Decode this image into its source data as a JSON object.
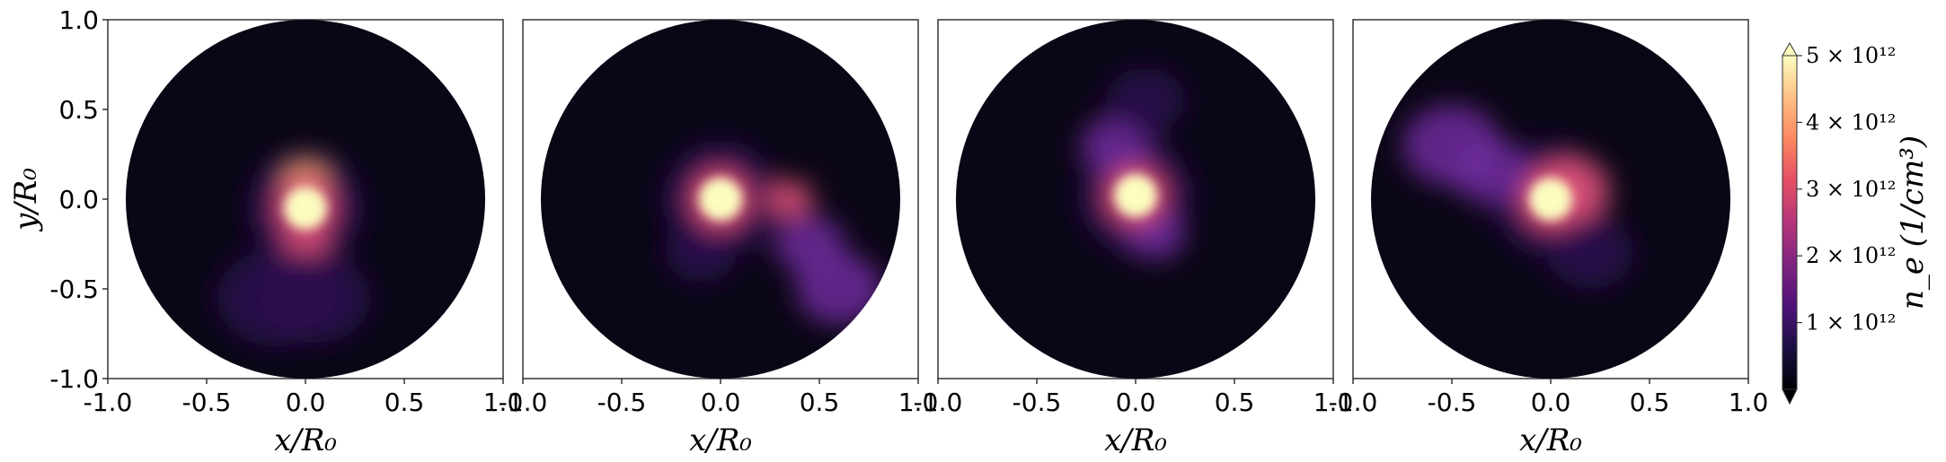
{
  "chart_data": {
    "type": "heatmap",
    "description_panels": 4,
    "xlabel": "x/R₀",
    "ylabel": "y/R₀",
    "xlim": [
      -1.0,
      1.0
    ],
    "ylim": [
      -1.0,
      1.0
    ],
    "xticks": [
      "-1.0",
      "-0.5",
      "0.0",
      "0.5",
      "1.0"
    ],
    "yticks": [
      "1.0",
      "0.5",
      "0.0",
      "-0.5",
      "-1.0"
    ],
    "colormap": "magma",
    "colors": {
      "background_disk": "#0b0616",
      "dim": "#2a0f4f",
      "mid": "#6e2a9c",
      "warm": "#e3527a",
      "hot": "#fca66b",
      "peak": "#fcfdbf"
    },
    "colorbar": {
      "label": "n_e (1/cm³)",
      "range": [
        0,
        5000000000000.0
      ],
      "ticks": [
        {
          "value": 1000000000000.0,
          "label": "1 × 10¹²"
        },
        {
          "value": 2000000000000.0,
          "label": "2 × 10¹²"
        },
        {
          "value": 3000000000000.0,
          "label": "3 × 10¹²"
        },
        {
          "value": 4000000000000.0,
          "label": "4 × 10¹²"
        },
        {
          "value": 5000000000000.0,
          "label": "5 × 10¹²"
        }
      ],
      "extend": "both"
    },
    "panels": [
      {
        "core": {
          "x": 0.0,
          "y": -0.05,
          "peak": 5000000000000.0
        },
        "features": [
          {
            "x": 0.0,
            "y": 0.1,
            "r": 0.12,
            "level": 4000000000000.0
          },
          {
            "x": 0.0,
            "y": -0.28,
            "r": 0.12,
            "level": 3000000000000.0
          },
          {
            "x": -0.15,
            "y": -0.55,
            "r": 0.3,
            "level": 1200000000000.0
          },
          {
            "x": 0.05,
            "y": -0.55,
            "r": 0.28,
            "level": 1200000000000.0
          }
        ]
      },
      {
        "core": {
          "x": 0.0,
          "y": 0.0,
          "peak": 5000000000000.0
        },
        "features": [
          {
            "x": 0.35,
            "y": 0.0,
            "r": 0.12,
            "level": 2500000000000.0
          },
          {
            "x": 0.45,
            "y": -0.25,
            "r": 0.18,
            "level": 1500000000000.0
          },
          {
            "x": 0.6,
            "y": -0.5,
            "r": 0.22,
            "level": 1500000000000.0
          },
          {
            "x": -0.1,
            "y": -0.3,
            "r": 0.18,
            "level": 1000000000000.0
          }
        ]
      },
      {
        "core": {
          "x": 0.0,
          "y": 0.02,
          "peak": 5000000000000.0
        },
        "features": [
          {
            "x": -0.1,
            "y": 0.3,
            "r": 0.18,
            "level": 2000000000000.0
          },
          {
            "x": 0.05,
            "y": 0.55,
            "r": 0.2,
            "level": 1200000000000.0
          },
          {
            "x": 0.1,
            "y": -0.2,
            "r": 0.15,
            "level": 1500000000000.0
          }
        ]
      },
      {
        "core": {
          "x": 0.0,
          "y": 0.0,
          "peak": 5000000000000.0
        },
        "features": [
          {
            "x": 0.1,
            "y": 0.05,
            "r": 0.2,
            "level": 3000000000000.0
          },
          {
            "x": -0.5,
            "y": 0.3,
            "r": 0.25,
            "level": 1500000000000.0
          },
          {
            "x": -0.3,
            "y": 0.15,
            "r": 0.2,
            "level": 1500000000000.0
          },
          {
            "x": 0.2,
            "y": -0.3,
            "r": 0.22,
            "level": 1000000000000.0
          }
        ]
      }
    ]
  }
}
